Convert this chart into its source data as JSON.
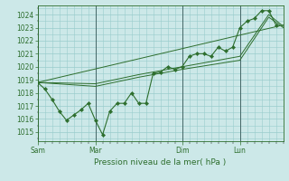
{
  "title": "Pression niveau de la mer( hPa )",
  "bg_color": "#cce8e8",
  "grid_color": "#99cccc",
  "line_color": "#2d6e2d",
  "marker_color": "#2d6e2d",
  "ylim": [
    1014.3,
    1024.7
  ],
  "yticks": [
    1015,
    1016,
    1017,
    1018,
    1019,
    1020,
    1021,
    1022,
    1023,
    1024
  ],
  "day_labels": [
    "Sam",
    "Mar",
    "Dim",
    "Lun"
  ],
  "day_positions": [
    0,
    48,
    120,
    168
  ],
  "total_hours": 204,
  "series_main": [
    [
      0,
      1018.8
    ],
    [
      6,
      1018.3
    ],
    [
      12,
      1017.5
    ],
    [
      18,
      1016.6
    ],
    [
      24,
      1015.9
    ],
    [
      30,
      1016.3
    ],
    [
      36,
      1016.7
    ],
    [
      42,
      1017.2
    ],
    [
      48,
      1015.9
    ],
    [
      54,
      1014.8
    ],
    [
      60,
      1016.6
    ],
    [
      66,
      1017.2
    ],
    [
      72,
      1017.2
    ],
    [
      78,
      1018.0
    ],
    [
      84,
      1017.2
    ],
    [
      90,
      1017.2
    ],
    [
      96,
      1019.5
    ],
    [
      102,
      1019.6
    ],
    [
      108,
      1020.0
    ],
    [
      114,
      1019.8
    ],
    [
      120,
      1020.0
    ],
    [
      126,
      1020.8
    ],
    [
      132,
      1021.0
    ],
    [
      138,
      1021.0
    ],
    [
      144,
      1020.8
    ],
    [
      150,
      1021.5
    ],
    [
      156,
      1021.2
    ],
    [
      162,
      1021.5
    ],
    [
      168,
      1023.0
    ],
    [
      174,
      1023.5
    ],
    [
      180,
      1023.7
    ],
    [
      186,
      1024.3
    ],
    [
      192,
      1024.3
    ],
    [
      198,
      1023.2
    ]
  ],
  "series_high": [
    [
      0,
      1018.8
    ],
    [
      204,
      1023.2
    ]
  ],
  "series_low": [
    [
      0,
      1018.8
    ],
    [
      48,
      1018.5
    ],
    [
      84,
      1019.2
    ],
    [
      120,
      1019.8
    ],
    [
      168,
      1020.5
    ],
    [
      192,
      1023.8
    ],
    [
      204,
      1023.0
    ]
  ],
  "series_mid": [
    [
      0,
      1018.8
    ],
    [
      48,
      1018.7
    ],
    [
      84,
      1019.4
    ],
    [
      120,
      1020.0
    ],
    [
      168,
      1020.8
    ],
    [
      192,
      1024.0
    ],
    [
      204,
      1023.1
    ]
  ]
}
